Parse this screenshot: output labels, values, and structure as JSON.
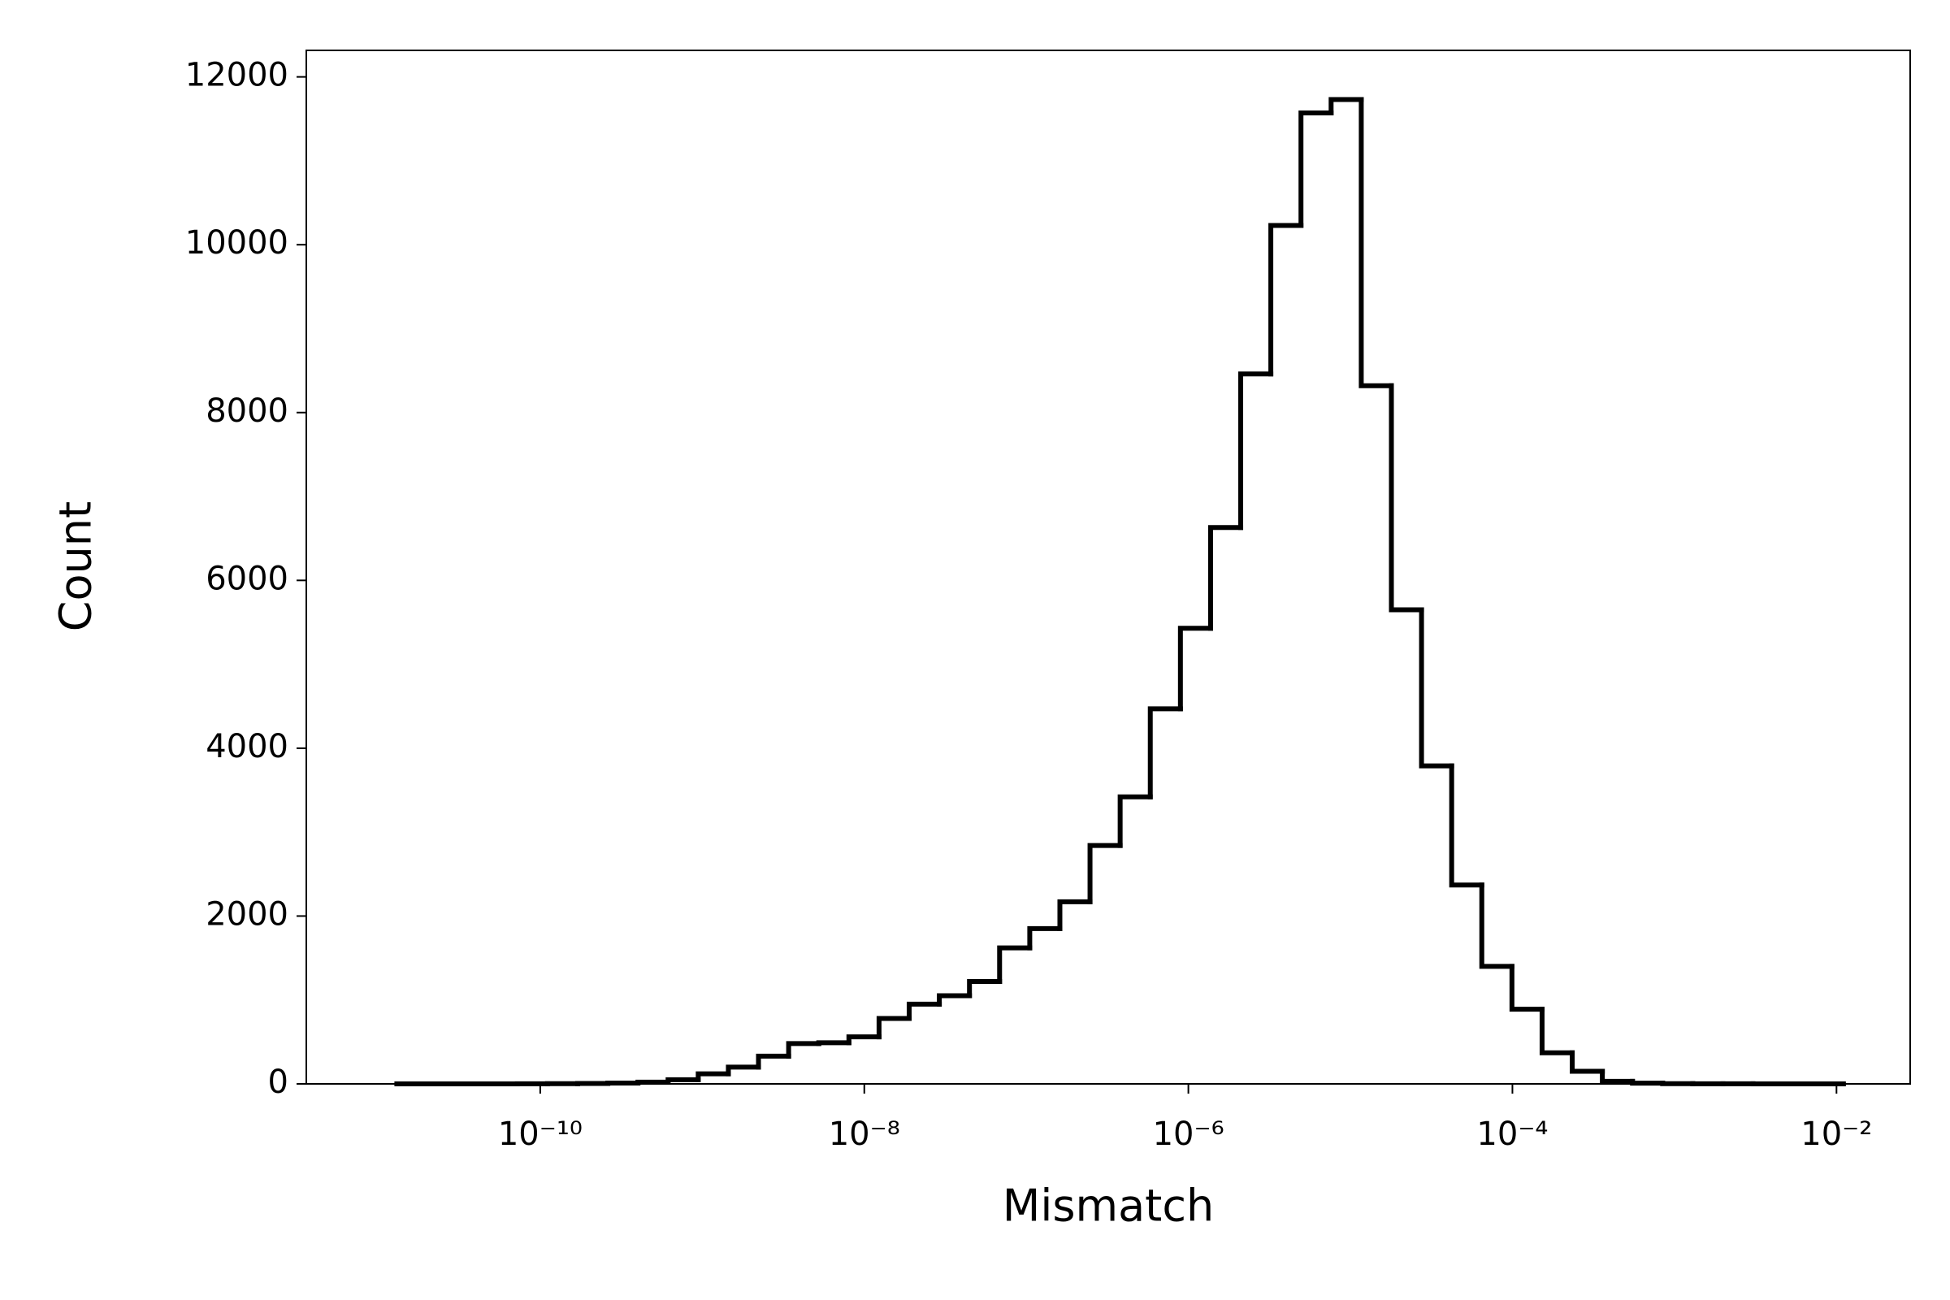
{
  "chart_data": {
    "type": "histogram",
    "xlabel": "Mismatch",
    "ylabel": "Count",
    "xscale": "log",
    "color": "#000000",
    "grid": false,
    "bins": [
      1.303e-11,
      2e-11,
      3.069e-11,
      4.71e-11,
      7.228e-11,
      1.109e-10,
      1.702e-10,
      2.612e-10,
      4.009e-10,
      6.152e-10,
      9.441e-10,
      1.449e-09,
      2.223e-09,
      3.412e-09,
      5.236e-09,
      8.035e-09,
      1.233e-08,
      1.892e-08,
      2.904e-08,
      4.457e-08,
      6.839e-08,
      1.05e-07,
      1.611e-07,
      2.472e-07,
      3.793e-07,
      5.821e-07,
      8.933e-07,
      1.371e-06,
      2.104e-06,
      3.228e-06,
      4.955e-06,
      7.603e-06,
      1.167e-05,
      1.791e-05,
      2.748e-05,
      4.217e-05,
      6.471e-05,
      9.931e-05,
      0.0001524,
      0.0002339,
      0.0003589,
      0.0005508,
      0.0008453,
      0.001297,
      0.001991,
      0.003055,
      0.004688,
      0.007194,
      0.01104
    ],
    "counts": [
      0,
      0,
      0,
      0,
      1,
      2,
      5,
      10,
      20,
      50,
      120,
      200,
      330,
      480,
      490,
      560,
      780,
      950,
      1050,
      1220,
      1620,
      1850,
      2170,
      2840,
      3420,
      4470,
      5430,
      6630,
      8460,
      10230,
      11570,
      11730,
      8320,
      5650,
      3790,
      2370,
      1400,
      890,
      370,
      150,
      30,
      8,
      3,
      1,
      1,
      0,
      0,
      0
    ],
    "xlim": [
      3.6e-12,
      0.0285
    ],
    "ylim": [
      0,
      12316
    ],
    "xticks": [
      {
        "value": 1e-10,
        "label": "10⁻¹⁰"
      },
      {
        "value": 1e-08,
        "label": "10⁻⁸"
      },
      {
        "value": 1e-06,
        "label": "10⁻⁶"
      },
      {
        "value": 0.0001,
        "label": "10⁻⁴"
      },
      {
        "value": 0.01,
        "label": "10⁻²"
      }
    ],
    "yticks": [
      0,
      2000,
      4000,
      6000,
      8000,
      10000,
      12000
    ]
  }
}
